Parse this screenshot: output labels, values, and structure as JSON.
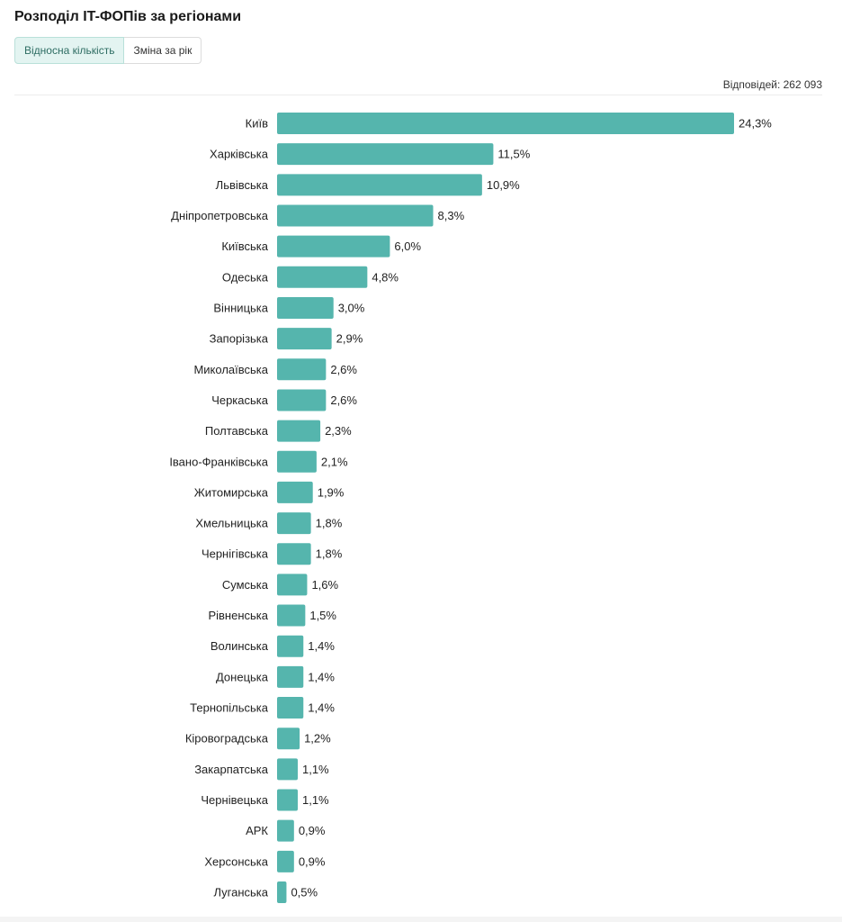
{
  "title": "Розподіл IT-ФОПів за регіонами",
  "tabs": [
    {
      "label": "Відносна кількість",
      "active": true
    },
    {
      "label": "Зміна за рік",
      "active": false
    }
  ],
  "responses_text": "Відповідей: 262 093",
  "colors": {
    "bar": "#55b5ad",
    "accent_tab_bg": "#e3f4f1"
  },
  "chart_data": {
    "type": "bar",
    "orientation": "horizontal",
    "categories": [
      "Київ",
      "Харківська",
      "Львівська",
      "Дніпропетровська",
      "Київська",
      "Одеська",
      "Вінницька",
      "Запорізька",
      "Миколаївська",
      "Черкаська",
      "Полтавська",
      "Івано-Франківська",
      "Житомирська",
      "Хмельницька",
      "Чернігівська",
      "Сумська",
      "Рівненська",
      "Волинська",
      "Донецька",
      "Тернопільська",
      "Кіровоградська",
      "Закарпатська",
      "Чернівецька",
      "АРК",
      "Херсонська",
      "Луганська"
    ],
    "values": [
      24.3,
      11.5,
      10.9,
      8.3,
      6.0,
      4.8,
      3.0,
      2.9,
      2.6,
      2.6,
      2.3,
      2.1,
      1.9,
      1.8,
      1.8,
      1.6,
      1.5,
      1.4,
      1.4,
      1.4,
      1.2,
      1.1,
      1.1,
      0.9,
      0.9,
      0.5
    ],
    "value_labels": [
      "24,3%",
      "11,5%",
      "10,9%",
      "8,3%",
      "6,0%",
      "4,8%",
      "3,0%",
      "2,9%",
      "2,6%",
      "2,6%",
      "2,3%",
      "2,1%",
      "1,9%",
      "1,8%",
      "1,8%",
      "1,6%",
      "1,5%",
      "1,4%",
      "1,4%",
      "1,4%",
      "1,2%",
      "1,1%",
      "1,1%",
      "0,9%",
      "0,9%",
      "0,5%"
    ],
    "xlim": [
      0,
      24.3
    ],
    "grid": false,
    "legend": "none"
  }
}
